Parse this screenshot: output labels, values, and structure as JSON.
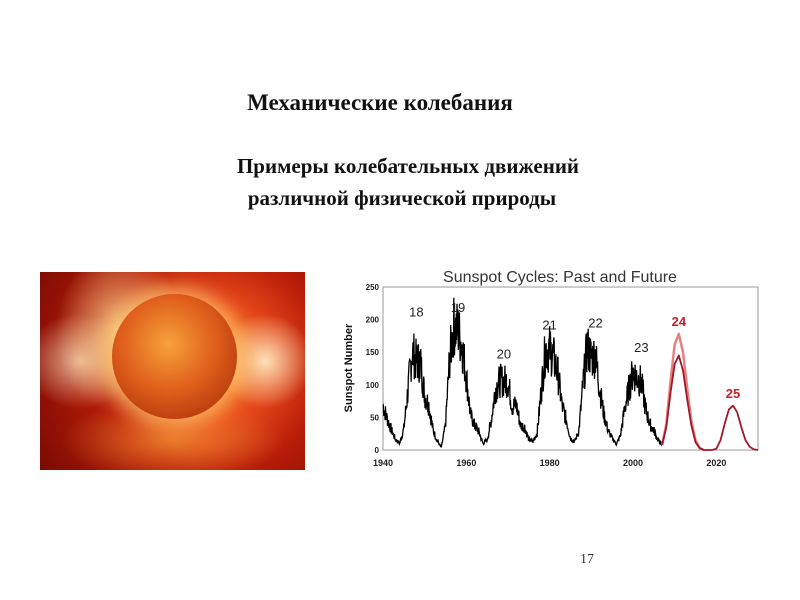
{
  "slide": {
    "title": "Механические колебания",
    "subtitle_line1": "Примеры колебательных движений",
    "subtitle_line2": "различной физической природы",
    "page_number": "17"
  },
  "image": {
    "subject": "sun-corona-photo"
  },
  "chart_data": {
    "type": "line",
    "title": "Sunspot Cycles: Past and Future",
    "xlabel": "",
    "ylabel": "Sunspot Number",
    "xlim": [
      1940,
      2030
    ],
    "ylim": [
      0,
      250
    ],
    "xticks": [
      "1940",
      "1960",
      "1980",
      "2000",
      "2020"
    ],
    "yticks": [
      "0",
      "50",
      "100",
      "150",
      "200",
      "250"
    ],
    "observed": {
      "color": "#000000",
      "x": [
        1940,
        1941,
        1942,
        1943,
        1944,
        1945,
        1946,
        1947,
        1948,
        1949,
        1950,
        1951,
        1952,
        1953,
        1954,
        1955,
        1956,
        1957,
        1958,
        1959,
        1960,
        1961,
        1962,
        1963,
        1964,
        1965,
        1966,
        1967,
        1968,
        1969,
        1970,
        1971,
        1972,
        1973,
        1974,
        1975,
        1976,
        1977,
        1978,
        1979,
        1980,
        1981,
        1982,
        1983,
        1984,
        1985,
        1986,
        1987,
        1988,
        1989,
        1990,
        1991,
        1992,
        1993,
        1994,
        1995,
        1996,
        1997,
        1998,
        1999,
        2000,
        2001,
        2002,
        2003,
        2004,
        2005,
        2006,
        2007
      ],
      "y": [
        68,
        48,
        31,
        16,
        10,
        33,
        93,
        152,
        136,
        135,
        84,
        69,
        31,
        14,
        4,
        38,
        142,
        190,
        185,
        159,
        112,
        54,
        38,
        28,
        10,
        15,
        47,
        94,
        106,
        106,
        105,
        67,
        69,
        38,
        35,
        16,
        13,
        27,
        93,
        155,
        155,
        140,
        116,
        67,
        46,
        18,
        13,
        29,
        100,
        158,
        142,
        146,
        94,
        55,
        30,
        18,
        9,
        22,
        64,
        93,
        120,
        111,
        104,
        64,
        40,
        30,
        15,
        8
      ]
    },
    "prediction_high": {
      "color": "#e88080",
      "x": [
        2007,
        2008,
        2009,
        2010,
        2011,
        2012,
        2013,
        2014,
        2015,
        2016,
        2017
      ],
      "y": [
        8,
        40,
        105,
        162,
        178,
        150,
        95,
        45,
        15,
        3,
        0
      ]
    },
    "prediction_low": {
      "color": "#a01828",
      "x": [
        2007,
        2008,
        2009,
        2010,
        2011,
        2012,
        2013,
        2014,
        2015,
        2016,
        2017,
        2018,
        2019,
        2020,
        2021,
        2022,
        2023,
        2024,
        2025,
        2026,
        2027,
        2028,
        2029,
        2030
      ],
      "y": [
        8,
        35,
        88,
        132,
        145,
        122,
        78,
        38,
        12,
        3,
        0,
        0,
        0,
        2,
        15,
        40,
        62,
        68,
        58,
        35,
        15,
        5,
        1,
        0
      ]
    },
    "annotations": [
      {
        "text": "18",
        "x": 1948,
        "y": 205,
        "color": "#222222"
      },
      {
        "text": "19",
        "x": 1958,
        "y": 212,
        "color": "#222222"
      },
      {
        "text": "20",
        "x": 1969,
        "y": 140,
        "color": "#222222"
      },
      {
        "text": "21",
        "x": 1980,
        "y": 185,
        "color": "#222222"
      },
      {
        "text": "22",
        "x": 1991,
        "y": 188,
        "color": "#222222"
      },
      {
        "text": "23",
        "x": 2002,
        "y": 150,
        "color": "#222222"
      },
      {
        "text": "24",
        "x": 2011,
        "y": 190,
        "color": "#c0202a"
      },
      {
        "text": "25",
        "x": 2024,
        "y": 80,
        "color": "#c0202a"
      }
    ],
    "grid": false,
    "legend": "none"
  }
}
